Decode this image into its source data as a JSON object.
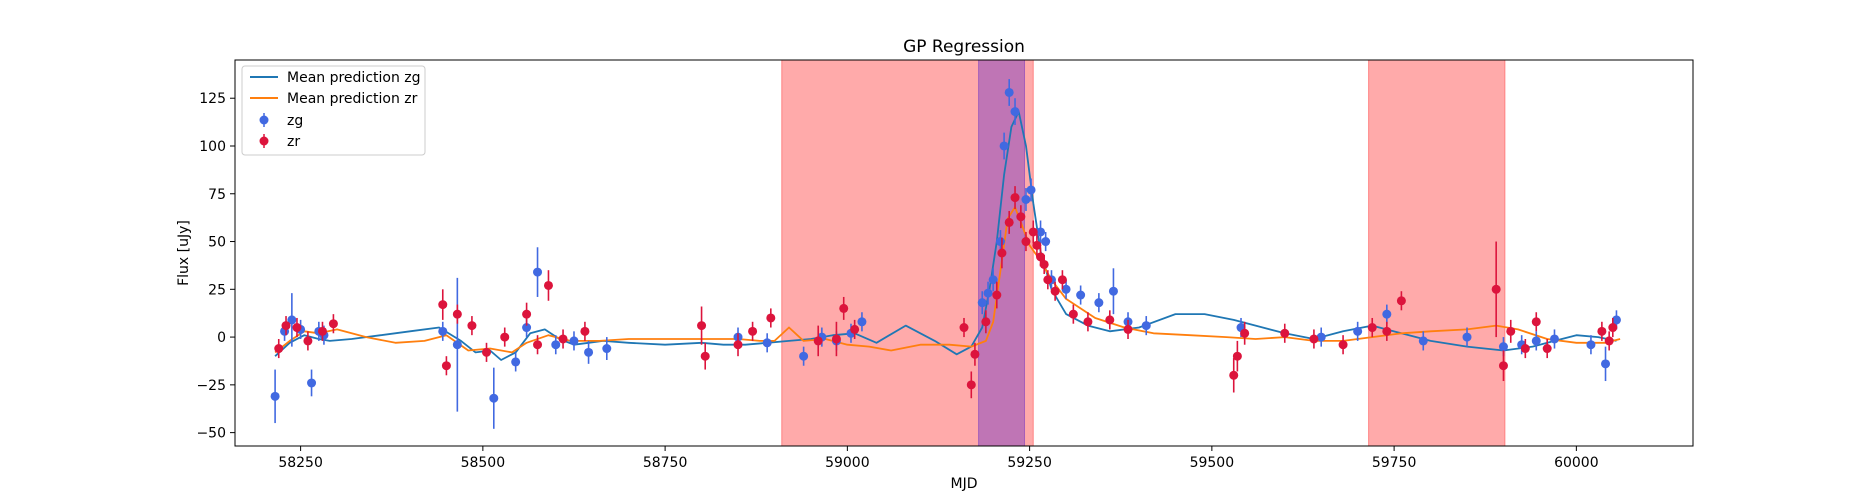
{
  "chart_data": {
    "type": "scatter",
    "title": "GP Regression",
    "xlabel": "MJD",
    "ylabel": "Flux [uJy]",
    "xlim": [
      58160,
      60160
    ],
    "ylim": [
      -57,
      145
    ],
    "xticks": [
      58250,
      58500,
      58750,
      59000,
      59250,
      59500,
      59750,
      60000
    ],
    "yticks": [
      -50,
      -25,
      0,
      25,
      50,
      75,
      100,
      125
    ],
    "grid": false,
    "legend_position": "top-left",
    "legend": [
      "Mean prediction zg",
      "Mean prediction zr",
      "zg",
      "zr"
    ],
    "shaded_regions": [
      {
        "x0": 58910,
        "x1": 59255,
        "color": "#ff5555"
      },
      {
        "x0": 59180,
        "x1": 59243,
        "color": "#7f3fbf"
      },
      {
        "x0": 59715,
        "x1": 59902,
        "color": "#ff5555"
      }
    ],
    "series": [
      {
        "name": "Mean prediction zg",
        "kind": "line",
        "color": "#1f77b4",
        "x": [
          58215,
          58235,
          58255,
          58275,
          58290,
          58320,
          58360,
          58400,
          58440,
          58470,
          58490,
          58510,
          58525,
          58545,
          58565,
          58585,
          58605,
          58625,
          58645,
          58665,
          58700,
          58750,
          58800,
          58830,
          58860,
          58890,
          58920,
          58950,
          58980,
          59010,
          59040,
          59080,
          59120,
          59150,
          59170,
          59185,
          59195,
          59205,
          59215,
          59225,
          59235,
          59245,
          59255,
          59265,
          59280,
          59300,
          59330,
          59360,
          59400,
          59450,
          59490,
          59530,
          59560,
          59600,
          59640,
          59680,
          59720,
          59760,
          59800,
          59850,
          59900,
          59940,
          59970,
          60000,
          60030,
          60055
        ],
        "y": [
          -10,
          -3,
          1,
          -1,
          -2,
          -1,
          1,
          3,
          5,
          -2,
          -8,
          -7,
          -12,
          -8,
          2,
          4,
          -1,
          -4,
          -3,
          -2,
          -3,
          -4,
          -3,
          -4,
          -4,
          -3,
          -2,
          -1,
          1,
          2,
          -3,
          6,
          -2,
          -9,
          -5,
          5,
          25,
          50,
          85,
          110,
          118,
          100,
          70,
          45,
          25,
          12,
          6,
          3,
          5,
          12,
          12,
          9,
          6,
          2,
          -1,
          3,
          6,
          2,
          -2,
          -5,
          -7,
          -5,
          -2,
          1,
          0,
          -2
        ]
      },
      {
        "name": "Mean prediction zr",
        "kind": "line",
        "color": "#ff7f0e",
        "x": [
          58215,
          58235,
          58255,
          58275,
          58300,
          58340,
          58380,
          58420,
          58450,
          58480,
          58510,
          58540,
          58560,
          58590,
          58620,
          58660,
          58700,
          58750,
          58800,
          58850,
          58880,
          58900,
          58920,
          58940,
          58970,
          59000,
          59030,
          59060,
          59100,
          59140,
          59170,
          59190,
          59200,
          59210,
          59220,
          59230,
          59240,
          59250,
          59265,
          59280,
          59300,
          59340,
          59380,
          59420,
          59470,
          59520,
          59560,
          59600,
          59640,
          59680,
          59720,
          59760,
          59800,
          59850,
          59890,
          59920,
          59960,
          60000,
          60040,
          60060
        ],
        "y": [
          -8,
          -2,
          3,
          2,
          4,
          0,
          -3,
          -2,
          1,
          -7,
          -6,
          -8,
          -3,
          1,
          -2,
          -2,
          -1,
          -1,
          -1,
          -1,
          -2,
          -2,
          5,
          -2,
          -1,
          -4,
          -5,
          -7,
          -4,
          -4,
          -5,
          -2,
          8,
          35,
          62,
          68,
          58,
          48,
          40,
          30,
          20,
          10,
          5,
          2,
          1,
          0,
          -1,
          0,
          -2,
          -2,
          0,
          2,
          3,
          4,
          6,
          4,
          -1,
          -3,
          -3,
          -1
        ]
      },
      {
        "name": "zg",
        "kind": "scatter",
        "color": "#4169e1",
        "x": [
          58215,
          58228,
          58238,
          58250,
          58265,
          58275,
          58282,
          58445,
          58465,
          58515,
          58545,
          58560,
          58575,
          58600,
          58625,
          58645,
          58670,
          58850,
          58890,
          58940,
          58965,
          58985,
          59005,
          59020,
          59185,
          59193,
          59200,
          59210,
          59215,
          59222,
          59230,
          59245,
          59252,
          59265,
          59272,
          59280,
          59300,
          59320,
          59345,
          59365,
          59385,
          59410,
          59540,
          59650,
          59700,
          59740,
          59790,
          59850,
          59900,
          59925,
          59945,
          59970,
          60020,
          60040,
          60055
        ],
        "y": [
          -31,
          3,
          9,
          4,
          -24,
          3,
          1,
          3,
          -4,
          -32,
          -13,
          5,
          34,
          -4,
          -2,
          -8,
          -6,
          0,
          -3,
          -10,
          0,
          -2,
          2,
          8,
          18,
          23,
          30,
          50,
          100,
          128,
          118,
          72,
          77,
          55,
          50,
          30,
          25,
          22,
          18,
          24,
          8,
          6,
          5,
          0,
          3,
          12,
          -2,
          0,
          -5,
          -4,
          -2,
          -1,
          -4,
          -14,
          9
        ],
        "err": [
          14,
          5,
          14,
          5,
          7,
          5,
          5,
          5,
          35,
          16,
          5,
          5,
          13,
          5,
          5,
          6,
          6,
          5,
          5,
          5,
          5,
          5,
          5,
          5,
          6,
          6,
          6,
          6,
          7,
          7,
          7,
          6,
          6,
          6,
          5,
          5,
          5,
          5,
          5,
          12,
          5,
          5,
          5,
          5,
          5,
          5,
          5,
          5,
          5,
          5,
          5,
          5,
          5,
          9,
          5
        ]
      },
      {
        "name": "zr",
        "kind": "scatter",
        "color": "#dc143c",
        "x": [
          58220,
          58230,
          58245,
          58260,
          58280,
          58295,
          58445,
          58450,
          58465,
          58485,
          58505,
          58530,
          58560,
          58575,
          58590,
          58610,
          58640,
          58800,
          58805,
          58850,
          58870,
          58895,
          58960,
          58985,
          58995,
          59010,
          59160,
          59170,
          59175,
          59190,
          59205,
          59212,
          59222,
          59230,
          59238,
          59245,
          59255,
          59260,
          59265,
          59270,
          59275,
          59285,
          59295,
          59310,
          59330,
          59360,
          59385,
          59530,
          59535,
          59545,
          59600,
          59640,
          59680,
          59720,
          59740,
          59760,
          59890,
          59900,
          59910,
          59930,
          59945,
          59960,
          60035,
          60045,
          60050
        ],
        "y": [
          -6,
          6,
          5,
          -2,
          3,
          7,
          17,
          -15,
          12,
          6,
          -8,
          0,
          12,
          -4,
          27,
          -1,
          3,
          6,
          -10,
          -4,
          3,
          10,
          -2,
          -1,
          15,
          4,
          5,
          -25,
          -9,
          8,
          22,
          44,
          60,
          73,
          63,
          50,
          55,
          48,
          42,
          38,
          30,
          24,
          30,
          12,
          8,
          9,
          4,
          -20,
          -10,
          2,
          2,
          -1,
          -4,
          5,
          3,
          19,
          25,
          -15,
          3,
          -6,
          8,
          -6,
          3,
          -2,
          5
        ],
        "err": [
          5,
          5,
          5,
          5,
          5,
          5,
          8,
          5,
          5,
          5,
          5,
          5,
          6,
          5,
          8,
          5,
          5,
          10,
          7,
          6,
          5,
          5,
          8,
          9,
          6,
          5,
          5,
          7,
          6,
          6,
          7,
          8,
          6,
          6,
          6,
          5,
          6,
          6,
          5,
          5,
          5,
          5,
          5,
          5,
          5,
          5,
          5,
          9,
          8,
          6,
          5,
          5,
          5,
          5,
          5,
          5,
          25,
          8,
          6,
          5,
          5,
          5,
          5,
          5,
          5
        ]
      }
    ]
  }
}
